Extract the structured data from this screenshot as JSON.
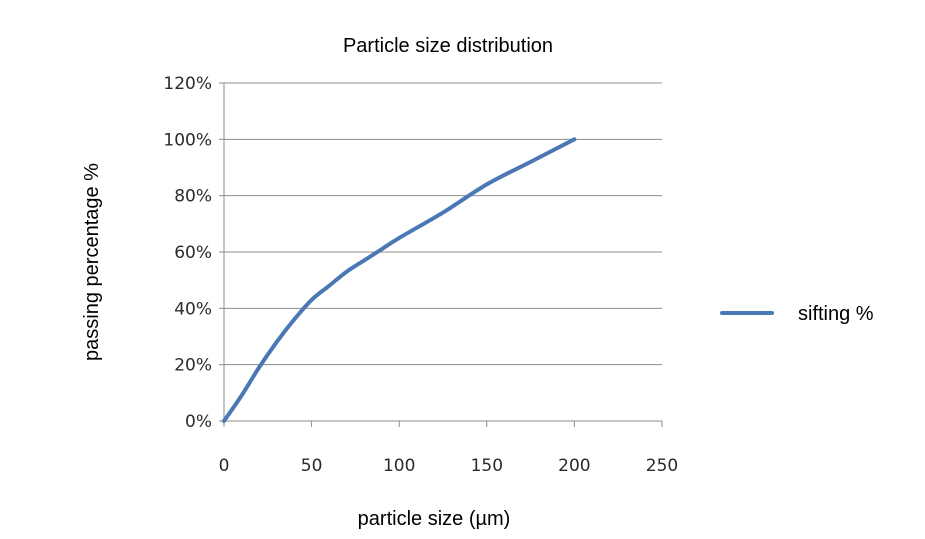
{
  "chart_data": {
    "type": "line",
    "title": "Particle size distribution",
    "xlabel": "particle size (µm)",
    "ylabel": "passing percentage  %",
    "xlim": [
      0,
      250
    ],
    "ylim": [
      0,
      120
    ],
    "x_ticks": [
      0,
      50,
      100,
      150,
      200,
      250
    ],
    "y_ticks": [
      0,
      20,
      40,
      60,
      80,
      100,
      120
    ],
    "y_tick_labels": [
      "0%",
      "20%",
      "40%",
      "60%",
      "80%",
      "100%",
      "120%"
    ],
    "grid": "horizontal",
    "legend_position": "right",
    "series": [
      {
        "name": "sifting %",
        "color": "#4a78b5",
        "x": [
          0,
          10,
          20,
          30,
          40,
          50,
          60,
          70,
          80,
          90,
          100,
          125,
          150,
          175,
          200
        ],
        "y": [
          0,
          9,
          19,
          28,
          36,
          43,
          48,
          53,
          57,
          61,
          65,
          74,
          84,
          92,
          100
        ]
      }
    ]
  }
}
